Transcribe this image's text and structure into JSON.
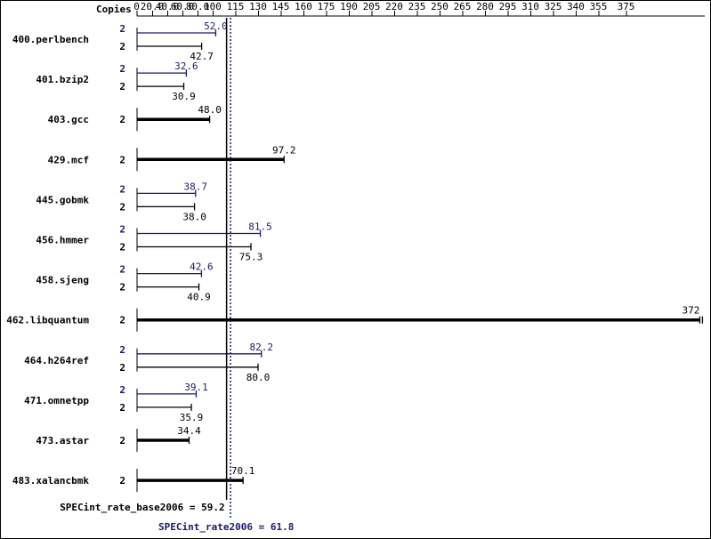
{
  "chart_data": {
    "type": "bar",
    "orientation": "horizontal",
    "title": "",
    "copies_label": "Copies",
    "x_ticks": [
      "0",
      "20.0",
      "40.0",
      "60.0",
      "80.0",
      "100",
      "115",
      "130",
      "145",
      "160",
      "175",
      "190",
      "205",
      "220",
      "235",
      "250",
      "265",
      "280",
      "295",
      "310",
      "325",
      "340",
      "355",
      "375"
    ],
    "xlim": [
      0,
      375
    ],
    "colors": {
      "peak": "#191970",
      "base": "#000000"
    },
    "benchmarks": [
      {
        "name": "400.perlbench",
        "peak": 52.0,
        "peak_label": "52.0",
        "peak_copies": "2",
        "base": 42.7,
        "base_label": "42.7",
        "base_copies": "2"
      },
      {
        "name": "401.bzip2",
        "peak": 32.6,
        "peak_label": "32.6",
        "peak_copies": "2",
        "base": 30.9,
        "base_label": "30.9",
        "base_copies": "2"
      },
      {
        "name": "403.gcc",
        "base": 48.0,
        "base_label": "48.0",
        "base_copies": "2"
      },
      {
        "name": "429.mcf",
        "base": 97.2,
        "base_label": "97.2",
        "base_copies": "2"
      },
      {
        "name": "445.gobmk",
        "peak": 38.7,
        "peak_label": "38.7",
        "peak_copies": "2",
        "base": 38.0,
        "base_label": "38.0",
        "base_copies": "2"
      },
      {
        "name": "456.hmmer",
        "peak": 81.5,
        "peak_label": "81.5",
        "peak_copies": "2",
        "base": 75.3,
        "base_label": "75.3",
        "base_copies": "2"
      },
      {
        "name": "458.sjeng",
        "peak": 42.6,
        "peak_label": "42.6",
        "peak_copies": "2",
        "base": 40.9,
        "base_label": "40.9",
        "base_copies": "2"
      },
      {
        "name": "462.libquantum",
        "base": 372,
        "base_label": "372",
        "base_copies": "2"
      },
      {
        "name": "464.h264ref",
        "peak": 82.2,
        "peak_label": "82.2",
        "peak_copies": "2",
        "base": 80.0,
        "base_label": "80.0",
        "base_copies": "2"
      },
      {
        "name": "471.omnetpp",
        "peak": 39.1,
        "peak_label": "39.1",
        "peak_copies": "2",
        "base": 35.9,
        "base_label": "35.9",
        "base_copies": "2"
      },
      {
        "name": "473.astar",
        "base": 34.4,
        "base_label": "34.4",
        "base_copies": "2"
      },
      {
        "name": "483.xalancbmk",
        "base": 70.1,
        "base_label": "70.1",
        "base_copies": "2"
      }
    ],
    "base_metric": {
      "label": "SPECint_rate_base2006 = 59.2",
      "value": 59.2
    },
    "peak_metric": {
      "label": "SPECint_rate2006 = 61.8",
      "value": 61.8
    }
  }
}
